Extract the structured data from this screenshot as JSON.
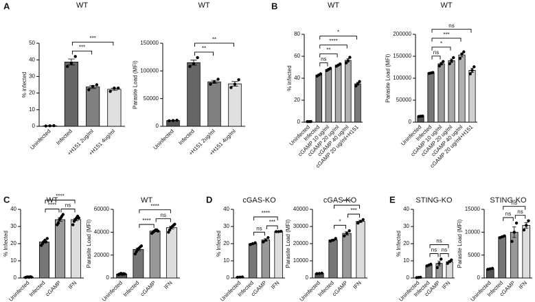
{
  "panel_labels": [
    "A",
    "B",
    "C",
    "D",
    "E"
  ],
  "chart_data": [
    {
      "type": "bar",
      "title": "WT",
      "ylabel": "% infected",
      "categories": [
        "Uninfected",
        "Infected",
        "+H151 2ug/ml",
        "+H151 4ug/ml"
      ],
      "values": [
        0.3,
        38.7,
        23.7,
        22.3
      ],
      "errors": [
        0.1,
        1.8,
        0.9,
        0.7
      ],
      "points": [
        [
          0.2,
          0.3,
          0.4
        ],
        [
          36,
          38,
          42
        ],
        [
          22,
          24,
          25
        ],
        [
          21,
          23,
          23
        ]
      ],
      "colors": [
        "#555555",
        "#666666",
        "#808080",
        "#e0e0e0"
      ],
      "ylim": [
        0,
        50
      ],
      "yticks": [
        0,
        10,
        20,
        30,
        40,
        50
      ],
      "sig": [
        {
          "from": 1,
          "to": 2,
          "label": "***"
        },
        {
          "from": 1,
          "to": 3,
          "label": "***"
        }
      ]
    },
    {
      "type": "bar",
      "title": "WT",
      "ylabel": "Parasite Load (MFI)",
      "categories": [
        "Uninfected",
        "Infected",
        "+H151 2ug/ml",
        "+H151 4ug/ml"
      ],
      "values": [
        10500,
        115000,
        80300,
        76700
      ],
      "errors": [
        300,
        4700,
        2600,
        4100
      ],
      "points": [
        [
          10000,
          10500,
          11000
        ],
        [
          108000,
          113000,
          124000
        ],
        [
          76000,
          80000,
          85000
        ],
        [
          70000,
          76000,
          84000
        ]
      ],
      "colors": [
        "#555555",
        "#666666",
        "#808080",
        "#e0e0e0"
      ],
      "ylim": [
        0,
        150000
      ],
      "yticks": [
        0,
        50000,
        100000,
        150000
      ],
      "sig": [
        {
          "from": 1,
          "to": 2,
          "label": "**"
        },
        {
          "from": 1,
          "to": 3,
          "label": "**"
        }
      ]
    },
    {
      "type": "bar",
      "title": "WT",
      "ylabel": "% infected",
      "categories": [
        "Uninfected",
        "Infected",
        "cGAMP 10 ug/ml",
        "cGAMP 20 ug/ml",
        "cGAMP 40 ug/ml",
        "cGAMP 20 ug/ml+H151"
      ],
      "values": [
        0.5,
        43,
        48,
        52,
        56.3,
        35
      ],
      "errors": [
        0.1,
        0.6,
        0.6,
        0.6,
        1.5,
        1.2
      ],
      "points": [
        [
          0.5,
          0.5,
          0.6
        ],
        [
          42,
          43,
          44
        ],
        [
          47,
          48,
          49
        ],
        [
          51,
          52,
          53
        ],
        [
          54,
          56,
          59
        ],
        [
          33,
          35,
          37
        ]
      ],
      "colors": [
        "#555555",
        "#777777",
        "#9a9a9a",
        "#a8a8a8",
        "#b0b0b0",
        "#7a7a7a"
      ],
      "ylim": [
        0,
        80
      ],
      "yticks": [
        0,
        20,
        40,
        60,
        80
      ],
      "sig": [
        {
          "from": 1,
          "to": 2,
          "label": "ns"
        },
        {
          "from": 1,
          "to": 3,
          "label": "**"
        },
        {
          "from": 1,
          "to": 4,
          "label": "****"
        },
        {
          "from": 1,
          "to": 5,
          "label": "*"
        }
      ]
    },
    {
      "type": "bar",
      "title": "WT",
      "ylabel": "Parasite Load (MFI)",
      "categories": [
        "Uninfected",
        "Infected",
        "cGAMP 10 ug/ml",
        "cGAMP 20 ug/ml",
        "cGAMP 40 ug/ml",
        "cGAMP 20 ug/ml+H151"
      ],
      "values": [
        13500,
        112000,
        133000,
        140000,
        153000,
        118000
      ],
      "errors": [
        300,
        600,
        2900,
        4000,
        4400,
        4600
      ],
      "points": [
        [
          13000,
          13500,
          14000
        ],
        [
          111000,
          112000,
          113000
        ],
        [
          128000,
          133000,
          138000
        ],
        [
          133000,
          140000,
          147000
        ],
        [
          145000,
          155000,
          160000
        ],
        [
          110000,
          118000,
          126000
        ]
      ],
      "colors": [
        "#555555",
        "#777777",
        "#9a9a9a",
        "#a8a8a8",
        "#b0b0b0",
        "#d0d0d0"
      ],
      "ylim": [
        0,
        200000
      ],
      "yticks": [
        0,
        50000,
        100000,
        150000,
        200000
      ],
      "sig": [
        {
          "from": 1,
          "to": 2,
          "label": "ns"
        },
        {
          "from": 1,
          "to": 3,
          "label": "*"
        },
        {
          "from": 1,
          "to": 4,
          "label": "***"
        },
        {
          "from": 1,
          "to": 5,
          "label": "ns"
        }
      ]
    },
    {
      "type": "bar",
      "title": "WT",
      "ylabel": "% Infected",
      "categories": [
        "Uninfected",
        "Infected",
        "cGAMP",
        "IFN"
      ],
      "values": [
        0.5,
        21,
        34,
        34
      ],
      "errors": [
        0.1,
        0.6,
        1,
        0.7
      ],
      "points": [
        [
          0.3,
          0.5,
          0.6,
          0.4,
          0.7,
          0.5
        ],
        [
          19,
          20,
          21,
          22,
          21,
          23
        ],
        [
          31,
          32,
          34,
          35,
          36,
          37
        ],
        [
          31,
          33,
          34,
          35,
          36,
          35
        ]
      ],
      "colors": [
        "#555555",
        "#777777",
        "#999999",
        "#dddddd"
      ],
      "ylim": [
        0,
        40
      ],
      "yticks": [
        0,
        10,
        20,
        30,
        40
      ],
      "sig": [
        {
          "from": 1,
          "to": 2,
          "label": "****"
        },
        {
          "from": 2,
          "to": 3,
          "label": "ns"
        },
        {
          "from": 1,
          "to": 3,
          "label": "****"
        }
      ]
    },
    {
      "type": "bar",
      "title": "WT",
      "ylabel": "Parasite Load (MFI)",
      "categories": [
        "Uninfected",
        "Infected",
        "cGAMP",
        "IFN"
      ],
      "values": [
        3500,
        25000,
        41000,
        44000
      ],
      "errors": [
        150,
        1100,
        450,
        1100
      ],
      "points": [
        [
          3000,
          3500,
          4000,
          3200,
          3800,
          3500
        ],
        [
          21000,
          23000,
          25000,
          26000,
          27000,
          28000
        ],
        [
          39000,
          40000,
          41000,
          42000,
          42000,
          41000
        ],
        [
          40000,
          42000,
          44000,
          45000,
          46000,
          47000
        ]
      ],
      "colors": [
        "#555555",
        "#777777",
        "#999999",
        "#dddddd"
      ],
      "ylim": [
        0,
        60000
      ],
      "yticks": [
        0,
        20000,
        40000,
        60000
      ],
      "sig": [
        {
          "from": 1,
          "to": 2,
          "label": "****"
        },
        {
          "from": 2,
          "to": 3,
          "label": "ns"
        },
        {
          "from": 1,
          "to": 3,
          "label": "****"
        }
      ]
    },
    {
      "type": "bar",
      "title": "cGAS-KO",
      "ylabel": "% Infected",
      "categories": [
        "Uninfected",
        "Infected",
        "cGAMP",
        "IFN"
      ],
      "values": [
        0.5,
        20,
        22.2,
        27.1
      ],
      "errors": [
        0.1,
        0.3,
        0.7,
        0.1
      ],
      "points": [
        [
          0.4,
          0.5,
          0.6
        ],
        [
          19.5,
          20,
          20.5
        ],
        [
          21,
          22,
          23.5
        ],
        [
          27,
          27,
          27.2
        ]
      ],
      "colors": [
        "#555555",
        "#777777",
        "#999999",
        "#dddddd"
      ],
      "ylim": [
        0,
        40
      ],
      "yticks": [
        0,
        10,
        20,
        30,
        40
      ],
      "sig": [
        {
          "from": 1,
          "to": 2,
          "label": "ns"
        },
        {
          "from": 2,
          "to": 3,
          "label": "***"
        },
        {
          "from": 1,
          "to": 3,
          "label": "****"
        }
      ]
    },
    {
      "type": "bar",
      "title": "cGAS-KO",
      "ylabel": "Parasite Load (MFI)",
      "categories": [
        "Uninfected",
        "Infected",
        "cGAMP",
        "IFN"
      ],
      "values": [
        2600,
        22200,
        26000,
        33000
      ],
      "errors": [
        100,
        450,
        900,
        600
      ],
      "points": [
        [
          2500,
          2600,
          2800
        ],
        [
          21500,
          22000,
          23000
        ],
        [
          24500,
          26000,
          27500
        ],
        [
          32000,
          33000,
          34000
        ]
      ],
      "colors": [
        "#555555",
        "#777777",
        "#999999",
        "#dddddd"
      ],
      "ylim": [
        0,
        40000
      ],
      "yticks": [
        0,
        10000,
        20000,
        30000,
        40000
      ],
      "sig": [
        {
          "from": 1,
          "to": 2,
          "label": "*"
        },
        {
          "from": 2,
          "to": 3,
          "label": "***"
        },
        {
          "from": 1,
          "to": 3,
          "label": "****"
        }
      ]
    },
    {
      "type": "bar",
      "title": "STING-KO",
      "ylabel": "% Infected",
      "categories": [
        "Uninfected",
        "Infected",
        "cGAMP",
        "IFN"
      ],
      "values": [
        0.3,
        7.5,
        8.5,
        9.5
      ],
      "errors": [
        0.1,
        0.3,
        1.4,
        0.6
      ],
      "points": [
        [
          0.2,
          0.3,
          0.4
        ],
        [
          7,
          7.5,
          8
        ],
        [
          6,
          8.5,
          11
        ],
        [
          8.5,
          9.5,
          10.5
        ]
      ],
      "colors": [
        "#555555",
        "#777777",
        "#999999",
        "#dddddd"
      ],
      "ylim": [
        0,
        40
      ],
      "yticks": [
        0,
        10,
        20,
        30,
        40
      ],
      "sig": [
        {
          "from": 1,
          "to": 2,
          "label": "ns"
        },
        {
          "from": 2,
          "to": 3,
          "label": "ns"
        },
        {
          "from": 1,
          "to": 3,
          "label": "ns"
        }
      ]
    },
    {
      "type": "bar",
      "title": "STING-KO",
      "ylabel": "Parasite Load (MFI)",
      "categories": [
        "Uninfected",
        "Infected",
        "cGAMP",
        "IFN"
      ],
      "values": [
        2000,
        9000,
        10000,
        11500
      ],
      "errors": [
        60,
        120,
        1150,
        600
      ],
      "points": [
        [
          1900,
          2000,
          2100
        ],
        [
          8800,
          9000,
          9200
        ],
        [
          8000,
          10000,
          12000
        ],
        [
          10500,
          11500,
          12500
        ]
      ],
      "colors": [
        "#555555",
        "#777777",
        "#999999",
        "#dddddd"
      ],
      "ylim": [
        0,
        15000
      ],
      "yticks": [
        0,
        5000,
        10000,
        15000
      ],
      "sig": [
        {
          "from": 1,
          "to": 2,
          "label": "ns"
        },
        {
          "from": 2,
          "to": 3,
          "label": "ns"
        },
        {
          "from": 1,
          "to": 3,
          "label": "ns"
        }
      ]
    }
  ]
}
